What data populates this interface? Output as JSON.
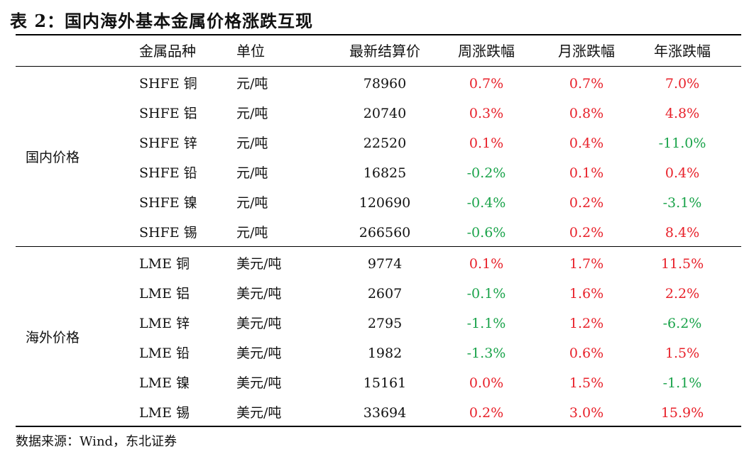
{
  "title": "表 2：国内海外基本金属价格涨跌互现",
  "headers": {
    "metal": "金属品种",
    "unit": "单位",
    "price": "最新结算价",
    "week": "周涨跌幅",
    "month": "月涨跌幅",
    "year": "年涨跌幅"
  },
  "groups": {
    "domestic": {
      "label": "国内价格",
      "rows": [
        {
          "metal": "SHFE 铜",
          "unit": "元/吨",
          "price": "78960",
          "week": "0.7%",
          "month": "0.7%",
          "year": "7.0%"
        },
        {
          "metal": "SHFE 铝",
          "unit": "元/吨",
          "price": "20740",
          "week": "0.3%",
          "month": "0.8%",
          "year": "4.8%"
        },
        {
          "metal": "SHFE 锌",
          "unit": "元/吨",
          "price": "22520",
          "week": "0.1%",
          "month": "0.4%",
          "year": "-11.0%"
        },
        {
          "metal": "SHFE 铅",
          "unit": "元/吨",
          "price": "16825",
          "week": "-0.2%",
          "month": "0.1%",
          "year": "0.4%"
        },
        {
          "metal": "SHFE 镍",
          "unit": "元/吨",
          "price": "120690",
          "week": "-0.4%",
          "month": "0.2%",
          "year": "-3.1%"
        },
        {
          "metal": "SHFE 锡",
          "unit": "元/吨",
          "price": "266560",
          "week": "-0.6%",
          "month": "0.2%",
          "year": "8.4%"
        }
      ]
    },
    "overseas": {
      "label": "海外价格",
      "rows": [
        {
          "metal": "LME 铜",
          "unit": "美元/吨",
          "price": "9774",
          "week": "0.1%",
          "month": "1.7%",
          "year": "11.5%"
        },
        {
          "metal": "LME 铝",
          "unit": "美元/吨",
          "price": "2607",
          "week": "-0.1%",
          "month": "1.6%",
          "year": "2.2%"
        },
        {
          "metal": "LME 锌",
          "unit": "美元/吨",
          "price": "2795",
          "week": "-1.1%",
          "month": "1.2%",
          "year": "-6.2%"
        },
        {
          "metal": "LME 铅",
          "unit": "美元/吨",
          "price": "1982",
          "week": "-1.3%",
          "month": "0.6%",
          "year": "1.5%"
        },
        {
          "metal": "LME 镍",
          "unit": "美元/吨",
          "price": "15161",
          "week": "0.0%",
          "month": "1.5%",
          "year": "-1.1%"
        },
        {
          "metal": "LME 锡",
          "unit": "美元/吨",
          "price": "33694",
          "week": "0.2%",
          "month": "3.0%",
          "year": "15.9%"
        }
      ]
    }
  },
  "colors": {
    "positive": "#e8212a",
    "negative": "#1aa34a",
    "text": "#111111"
  },
  "source": "数据来源：Wind，东北证券"
}
